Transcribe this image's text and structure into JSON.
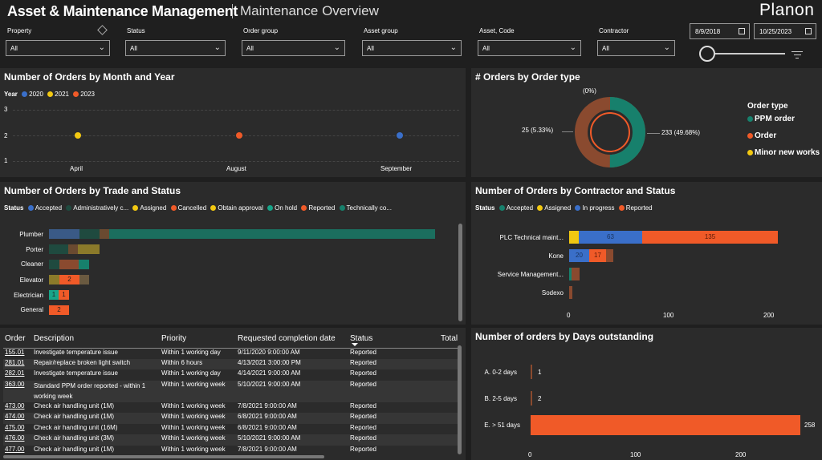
{
  "header": {
    "title": "Asset & Maintenance Management",
    "subtitle": "Maintenance Overview",
    "logo": "Planon"
  },
  "filters": [
    {
      "label": "Property",
      "value": "All"
    },
    {
      "label": "Status",
      "value": "All"
    },
    {
      "label": "Order group",
      "value": "All"
    },
    {
      "label": "Asset group",
      "value": "All"
    },
    {
      "label": "Asset, Code",
      "value": "All"
    },
    {
      "label": "Contractor",
      "value": "All"
    }
  ],
  "date_range": {
    "start": "8/9/2018",
    "end": "10/25/2023",
    "slider_position": 0
  },
  "icons": {
    "eraser": "eraser-icon",
    "calendar": "calendar-icon",
    "filter": "filter-icon",
    "chevron": "chevron-down-icon"
  },
  "colors": {
    "background": "#1f1f1f",
    "panel": "#2b2b2b",
    "blue": "#3a6fc9",
    "yellow": "#f2c811",
    "orange": "#f05a28",
    "teal": "#17806c",
    "brown": "#8a4a2f",
    "olive": "#8b7a2a"
  },
  "orders_by_month": {
    "title": "Number of Orders by Month and Year",
    "legend_title": "Year",
    "legend": [
      {
        "name": "2020",
        "color": "#3a6fc9"
      },
      {
        "name": "2021",
        "color": "#f2c811"
      },
      {
        "name": "2023",
        "color": "#f05a28"
      }
    ],
    "y_ticks": [
      "3",
      "2",
      "1"
    ],
    "x_ticks": [
      "April",
      "August",
      "September"
    ]
  },
  "orders_by_type": {
    "title": "# Orders by Order type",
    "labels": {
      "top": "(0%)",
      "left": "25 (5.33%)",
      "right": "233 (49.68%)"
    },
    "legend_title": "Order type",
    "legend": [
      {
        "name": "PPM order",
        "color": "#17806c"
      },
      {
        "name": "Order",
        "color": "#f05a28"
      },
      {
        "name": "Minor new works",
        "color": "#f2c811"
      }
    ]
  },
  "orders_by_trade": {
    "title": "Number of Orders by Trade and Status",
    "legend_title": "Status",
    "legend": [
      {
        "name": "Accepted",
        "color": "#3a6fc9"
      },
      {
        "name": "Administratively c...",
        "color": "#1f4a3f"
      },
      {
        "name": "Assigned",
        "color": "#f2c811"
      },
      {
        "name": "Cancelled",
        "color": "#f05a28"
      },
      {
        "name": "Obtain approval",
        "color": "#f2c811"
      },
      {
        "name": "On hold",
        "color": "#17a589"
      },
      {
        "name": "Reported",
        "color": "#f05a28"
      },
      {
        "name": "Technically co...",
        "color": "#17806c"
      }
    ],
    "categories": [
      "Plumber",
      "Porter",
      "Cleaner",
      "Elevator",
      "Electrician",
      "General"
    ],
    "segment_labels": {
      "elevator": "2",
      "electrician_a": "1",
      "electrician_b": "1",
      "general": "2"
    }
  },
  "orders_by_contractor": {
    "title": "Number of Orders by Contractor and Status",
    "legend_title": "Status",
    "legend": [
      {
        "name": "Accepted",
        "color": "#17806c"
      },
      {
        "name": "Assigned",
        "color": "#f2c811"
      },
      {
        "name": "In progress",
        "color": "#3a6fc9"
      },
      {
        "name": "Reported",
        "color": "#f05a28"
      }
    ],
    "categories": [
      "PLC Technical maint...",
      "Kone",
      "Service Management...",
      "Sodexo"
    ],
    "x_ticks": [
      "0",
      "100",
      "200"
    ],
    "segment_labels": {
      "plc_in_progress": "63",
      "plc_reported": "135",
      "kone_in_progress": "20",
      "kone_reported": "17"
    }
  },
  "orders_by_days": {
    "title": "Number of orders by Days outstanding",
    "categories": [
      "A. 0-2 days",
      "B. 2-5 days",
      "E. > 51 days"
    ],
    "values_text": [
      "1",
      "2",
      "258"
    ],
    "x_ticks": [
      "0",
      "100",
      "200"
    ]
  },
  "chart_data": [
    {
      "type": "scatter",
      "title": "Number of Orders by Month and Year",
      "legend_title": "Year",
      "categories": [
        "April",
        "August",
        "September"
      ],
      "series": [
        {
          "name": "2020",
          "x": [
            "September"
          ],
          "values": [
            2
          ]
        },
        {
          "name": "2021",
          "x": [
            "April"
          ],
          "values": [
            2
          ]
        },
        {
          "name": "2023",
          "x": [
            "August"
          ],
          "values": [
            2
          ]
        }
      ],
      "ylim": [
        1,
        3
      ],
      "grid": true,
      "legend_position": "top-left"
    },
    {
      "type": "pie",
      "title": "# Orders by Order type",
      "legend_title": "Order type",
      "slices": [
        {
          "name": "PPM order",
          "value": 233,
          "percent": 49.68
        },
        {
          "name": "Order",
          "value": 25,
          "percent": 5.33
        },
        {
          "name": "Minor new works",
          "value": 0,
          "percent": 0
        }
      ],
      "legend_position": "right"
    },
    {
      "type": "bar",
      "orientation": "horizontal",
      "stacked": true,
      "title": "Number of Orders by Trade and Status",
      "categories": [
        "Plumber",
        "Porter",
        "Cleaner",
        "Elevator",
        "Electrician",
        "General"
      ],
      "series": [
        {
          "name": "Accepted",
          "values": [
            9,
            0,
            0,
            0,
            0,
            0
          ]
        },
        {
          "name": "Administratively c...",
          "values": [
            6,
            6,
            3,
            0,
            0,
            0
          ]
        },
        {
          "name": "Assigned",
          "values": [
            0,
            0,
            0,
            0,
            0,
            0
          ]
        },
        {
          "name": "Cancelled",
          "values": [
            3,
            3,
            6,
            3,
            0,
            0
          ]
        },
        {
          "name": "Obtain approval",
          "values": [
            0,
            6,
            0,
            0,
            0,
            0
          ]
        },
        {
          "name": "On hold",
          "values": [
            0,
            0,
            0,
            0,
            1,
            0
          ]
        },
        {
          "name": "Reported",
          "values": [
            0,
            0,
            0,
            2,
            1,
            2
          ]
        },
        {
          "name": "Technically co...",
          "values": [
            101,
            0,
            3,
            3,
            0,
            0
          ]
        }
      ],
      "legend_position": "top-left"
    },
    {
      "type": "bar",
      "orientation": "horizontal",
      "stacked": true,
      "title": "Number of Orders by Contractor and Status",
      "categories": [
        "PLC Technical maint...",
        "Kone",
        "Service Management...",
        "Sodexo"
      ],
      "series": [
        {
          "name": "Accepted",
          "values": [
            0,
            0,
            2,
            0
          ]
        },
        {
          "name": "Assigned",
          "values": [
            9,
            0,
            0,
            0
          ]
        },
        {
          "name": "In progress",
          "values": [
            63,
            20,
            0,
            0
          ]
        },
        {
          "name": "Reported",
          "values": [
            135,
            17,
            8,
            3
          ]
        }
      ],
      "xlim": [
        0,
        250
      ],
      "legend_position": "top-left"
    },
    {
      "type": "bar",
      "orientation": "horizontal",
      "title": "Number of orders by Days outstanding",
      "categories": [
        "A. 0-2 days",
        "B. 2-5 days",
        "E. > 51 days"
      ],
      "values": [
        1,
        2,
        258
      ],
      "xlim": [
        0,
        260
      ]
    }
  ],
  "orders_table": {
    "columns": [
      "Order",
      "Description",
      "Priority",
      "Requested completion date",
      "Status",
      "Total"
    ],
    "rows": [
      [
        "155.01",
        "Investigate temperature issue",
        "Within 1 working day",
        "9/11/2020 9:00:00 AM",
        "Reported"
      ],
      [
        "281.01",
        "Repair/replace broken light switch",
        "Within 6 hours",
        "4/13/2021 3:00:00 PM",
        "Reported"
      ],
      [
        "282.01",
        "Investigate temperature issue",
        "Within 1 working day",
        "4/14/2021 9:00:00 AM",
        "Reported"
      ],
      [
        "363.00",
        "Standard PPM order reported - within 1 working week",
        "Within 1 working week",
        "5/10/2021 9:00:00 AM",
        "Reported"
      ],
      [
        "473.00",
        "Check air handling unit (1M)",
        "Within 1 working week",
        "7/8/2021 9:00:00 AM",
        "Reported"
      ],
      [
        "474.00",
        "Check air handling unit (1M)",
        "Within 1 working week",
        "6/8/2021 9:00:00 AM",
        "Reported"
      ],
      [
        "475.00",
        "Check air handling unit (16M)",
        "Within 1 working week",
        "6/8/2021 9:00:00 AM",
        "Reported"
      ],
      [
        "476.00",
        "Check air handling unit (3M)",
        "Within 1 working week",
        "5/10/2021 9:00:00 AM",
        "Reported"
      ],
      [
        "477.00",
        "Check air handling unit (1M)",
        "Within 1 working week",
        "7/8/2021 9:00:00 AM",
        "Reported"
      ]
    ]
  }
}
